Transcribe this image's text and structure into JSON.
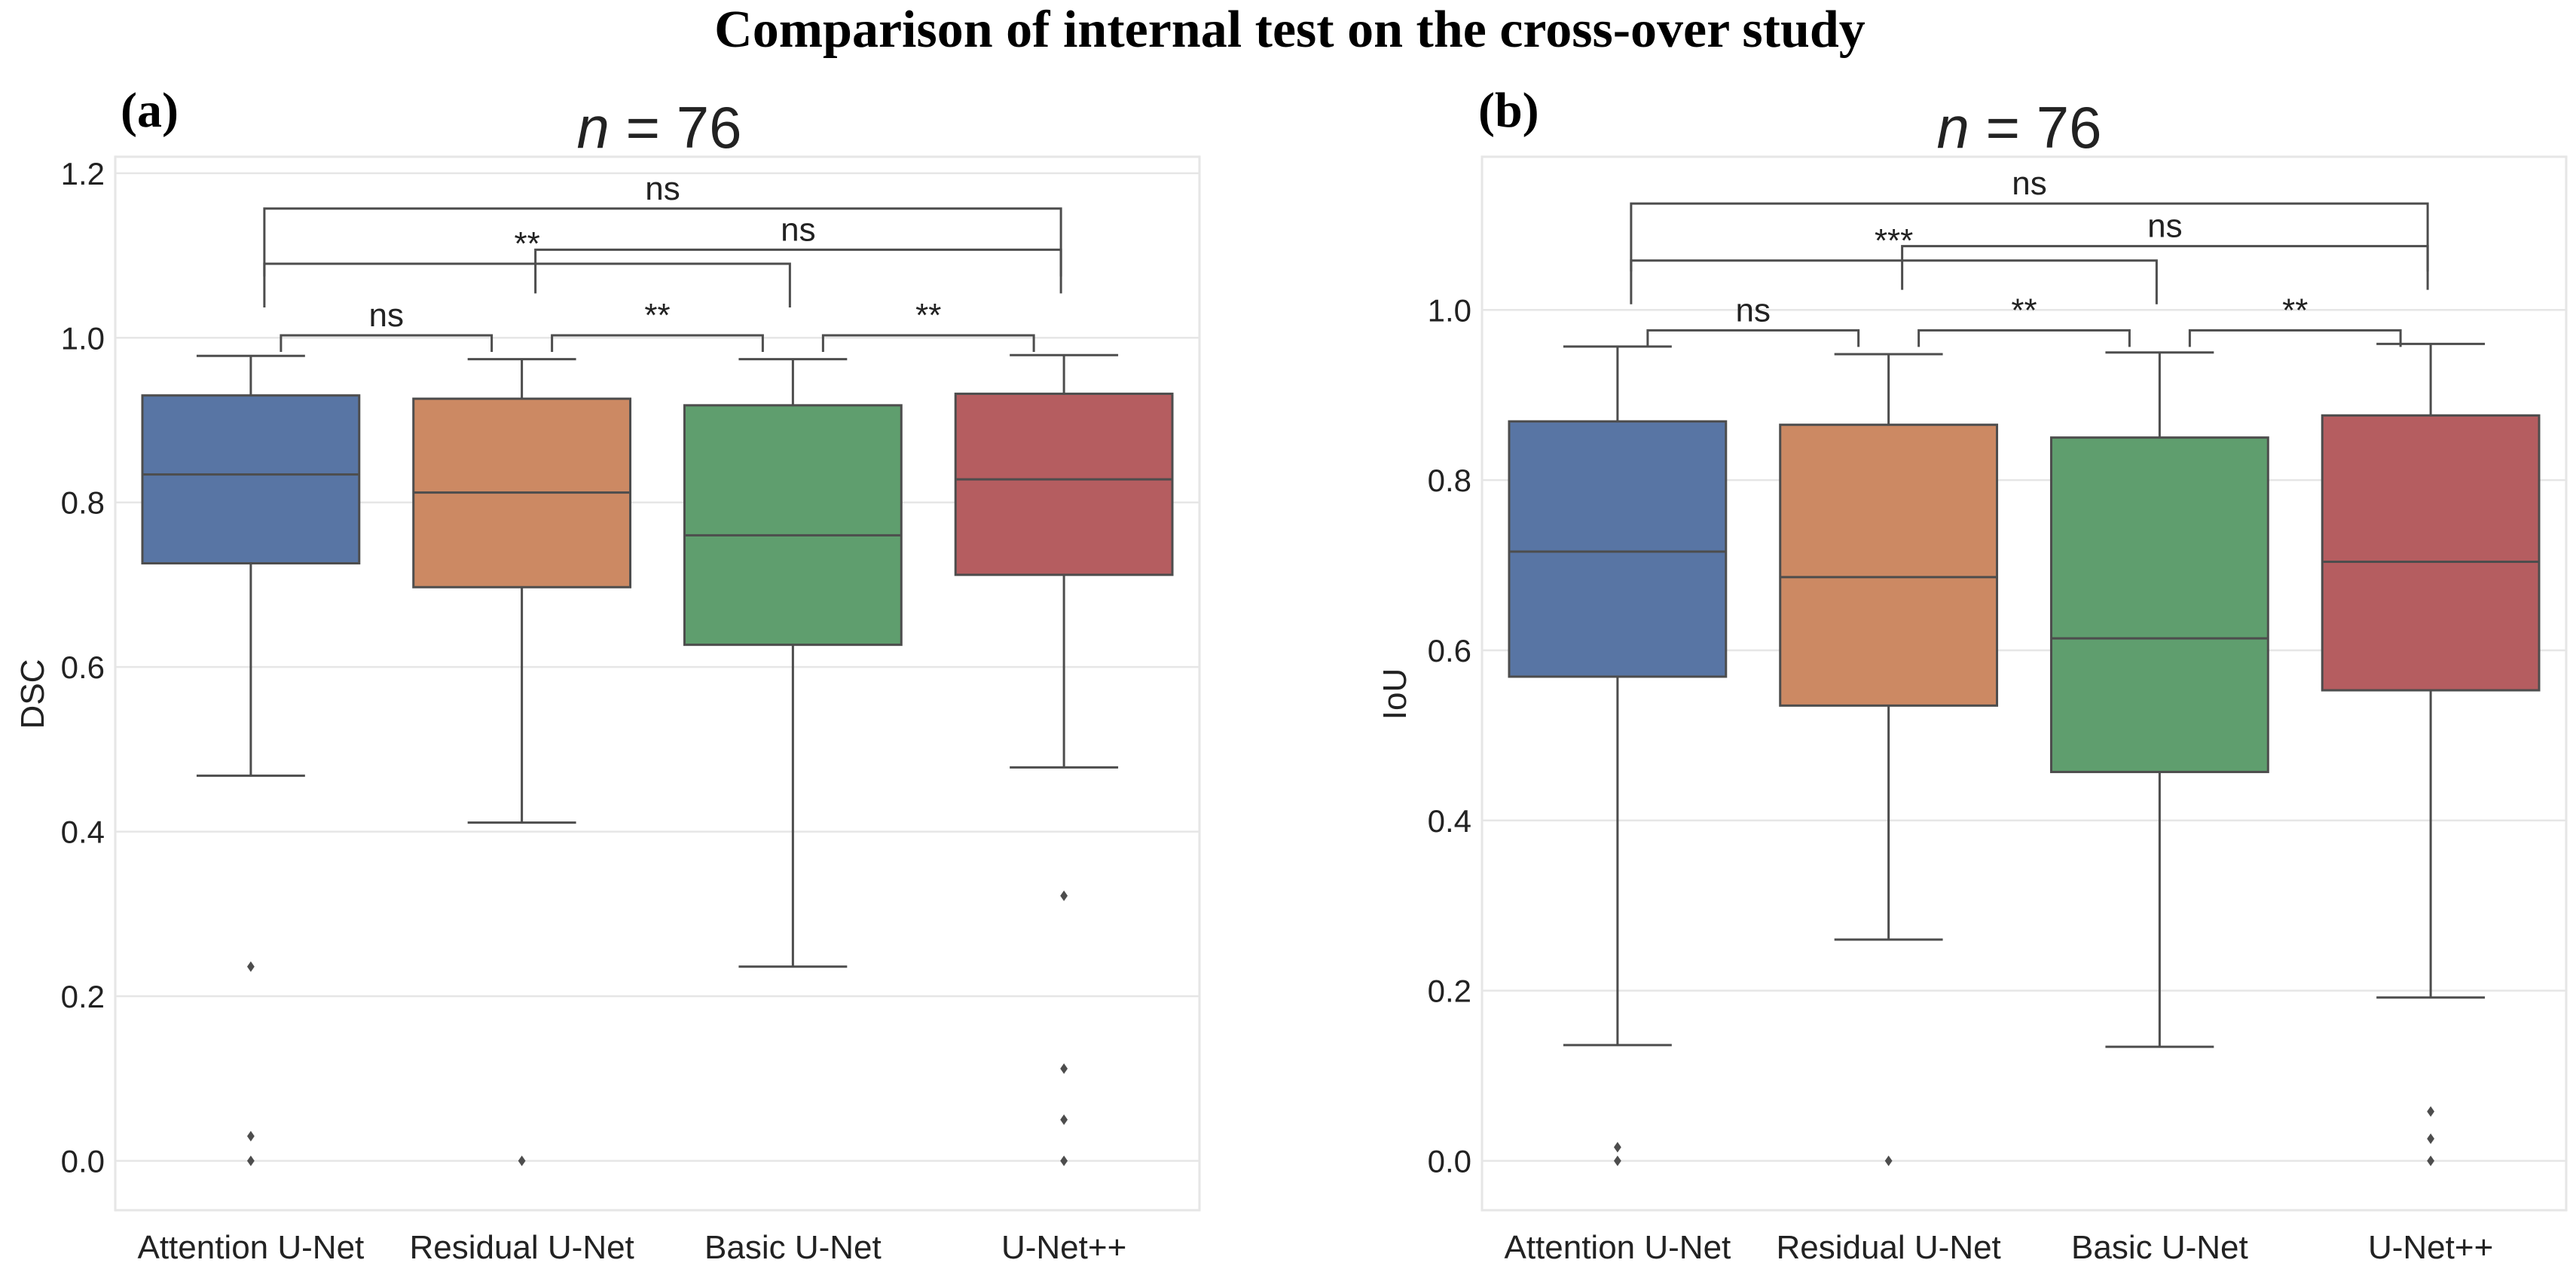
{
  "figure_title": "Comparison of internal test on the cross-over study",
  "chart_data": [
    {
      "type": "box",
      "panel": "(a)",
      "title_var": "n",
      "title_rest": " = 76",
      "ylabel": "DSC",
      "xlabel": "",
      "ylim": [
        -0.06,
        1.22
      ],
      "yticks": [
        0.0,
        0.2,
        0.4,
        0.6,
        0.8,
        1.0,
        1.2
      ],
      "ytick_labels": [
        "0.0",
        "0.2",
        "0.4",
        "0.6",
        "0.8",
        "1.0",
        "1.2"
      ],
      "grid": true,
      "categories": [
        "Attention U-Net",
        "Residual U-Net",
        "Basic U-Net",
        "U-Net++"
      ],
      "colors": [
        "#5875a4",
        "#cc8963",
        "#5f9e6e",
        "#b55d60"
      ],
      "boxes": [
        {
          "whisker_low": 0.468,
          "q1": 0.726,
          "median": 0.834,
          "q3": 0.93,
          "whisker_high": 0.978,
          "outliers": [
            0.236,
            0.03,
            0.0
          ]
        },
        {
          "whisker_low": 0.411,
          "q1": 0.697,
          "median": 0.812,
          "q3": 0.926,
          "whisker_high": 0.974,
          "outliers": [
            0.0
          ]
        },
        {
          "whisker_low": 0.236,
          "q1": 0.627,
          "median": 0.76,
          "q3": 0.918,
          "whisker_high": 0.974,
          "outliers": []
        },
        {
          "whisker_low": 0.478,
          "q1": 0.712,
          "median": 0.828,
          "q3": 0.932,
          "whisker_high": 0.979,
          "outliers": [
            0.322,
            0.112,
            0.05,
            0.0
          ]
        }
      ],
      "annotations": [
        {
          "from": 0,
          "to": 1,
          "y": 1.003,
          "label": "ns"
        },
        {
          "from": 1,
          "to": 2,
          "y": 1.003,
          "label": "**"
        },
        {
          "from": 2,
          "to": 3,
          "y": 1.003,
          "label": "**"
        },
        {
          "from": 0,
          "to": 2,
          "y": 1.09,
          "label": "**"
        },
        {
          "from": 1,
          "to": 3,
          "y": 1.107,
          "label": "ns"
        },
        {
          "from": 0,
          "to": 3,
          "y": 1.157,
          "label": "ns"
        }
      ]
    },
    {
      "type": "box",
      "panel": "(b)",
      "title_var": "n",
      "title_rest": " = 76",
      "ylabel": "IoU",
      "xlabel": "",
      "ylim": [
        -0.058,
        1.18
      ],
      "yticks": [
        0.0,
        0.2,
        0.4,
        0.6,
        0.8,
        1.0
      ],
      "ytick_labels": [
        "0.0",
        "0.2",
        "0.4",
        "0.6",
        "0.8",
        "1.0"
      ],
      "grid": true,
      "categories": [
        "Attention U-Net",
        "Residual U-Net",
        "Basic U-Net",
        "U-Net++"
      ],
      "colors": [
        "#5875a4",
        "#cc8963",
        "#5f9e6e",
        "#b55d60"
      ],
      "boxes": [
        {
          "whisker_low": 0.136,
          "q1": 0.569,
          "median": 0.716,
          "q3": 0.869,
          "whisker_high": 0.957,
          "outliers": [
            0.016,
            0.0
          ]
        },
        {
          "whisker_low": 0.26,
          "q1": 0.535,
          "median": 0.686,
          "q3": 0.865,
          "whisker_high": 0.948,
          "outliers": [
            0.0
          ]
        },
        {
          "whisker_low": 0.134,
          "q1": 0.457,
          "median": 0.614,
          "q3": 0.85,
          "whisker_high": 0.95,
          "outliers": []
        },
        {
          "whisker_low": 0.192,
          "q1": 0.553,
          "median": 0.704,
          "q3": 0.876,
          "whisker_high": 0.96,
          "outliers": [
            0.058,
            0.026,
            0.0
          ]
        }
      ],
      "annotations": [
        {
          "from": 0,
          "to": 1,
          "y": 0.976,
          "label": "ns"
        },
        {
          "from": 1,
          "to": 2,
          "y": 0.976,
          "label": "**"
        },
        {
          "from": 2,
          "to": 3,
          "y": 0.976,
          "label": "**"
        },
        {
          "from": 0,
          "to": 2,
          "y": 1.058,
          "label": "***"
        },
        {
          "from": 1,
          "to": 3,
          "y": 1.075,
          "label": "ns"
        },
        {
          "from": 0,
          "to": 3,
          "y": 1.125,
          "label": "ns"
        }
      ]
    }
  ]
}
